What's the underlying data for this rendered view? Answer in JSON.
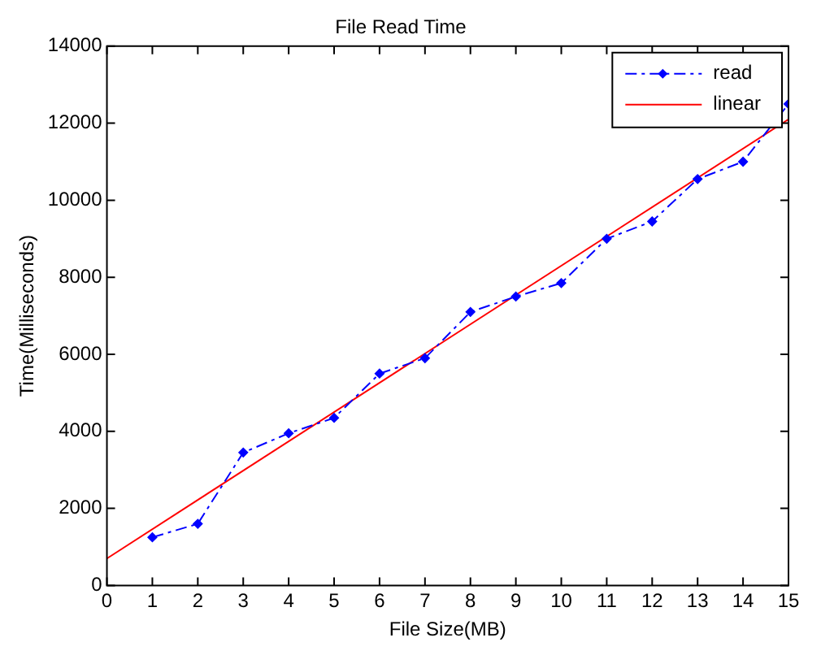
{
  "chart_data": {
    "type": "line",
    "title": "File Read Time",
    "xlabel": "File Size(MB)",
    "ylabel": "Time(Milliseconds)",
    "xlim": [
      0,
      15
    ],
    "xticks": [
      0,
      1,
      2,
      3,
      4,
      5,
      6,
      7,
      8,
      9,
      10,
      11,
      12,
      13,
      14,
      15
    ],
    "ylim": [
      0,
      14000
    ],
    "yticks": [
      0,
      2000,
      4000,
      6000,
      8000,
      10000,
      12000,
      14000
    ],
    "grid": false,
    "legend": "top right",
    "series": [
      {
        "name": "read",
        "color": "#0000ff",
        "x": [
          1,
          2,
          3,
          4,
          5,
          6,
          7,
          8,
          9,
          10,
          11,
          12,
          13,
          14,
          15
        ],
        "values": [
          1250,
          1600,
          3450,
          3950,
          4350,
          5500,
          5900,
          7100,
          7500,
          7850,
          9000,
          9450,
          10550,
          11000,
          12500
        ],
        "marker": "diamond",
        "line_style": "dashed"
      },
      {
        "name": "linear",
        "color": "#ff0000",
        "x": [
          0,
          15
        ],
        "values": [
          700,
          12100
        ],
        "marker": "none",
        "line_style": "solid"
      }
    ]
  }
}
